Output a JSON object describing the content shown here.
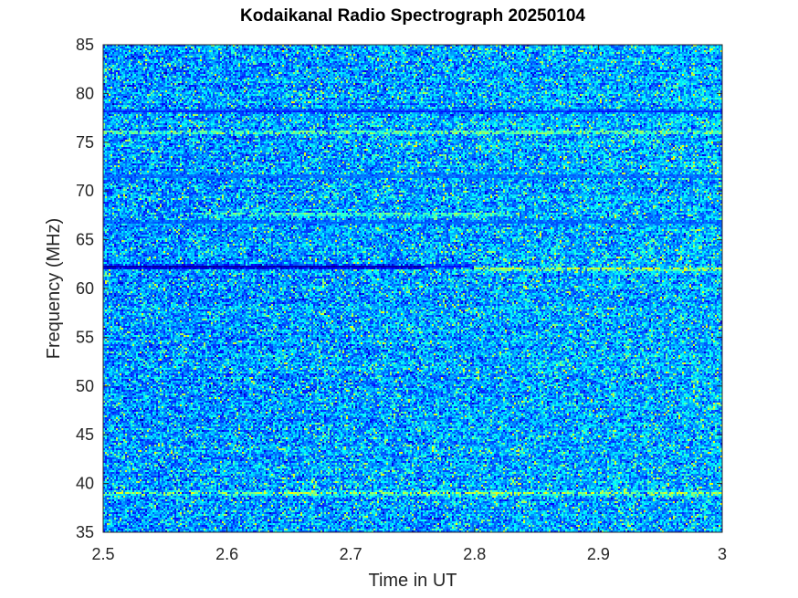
{
  "chart_data": {
    "type": "heatmap",
    "title": "Kodaikanal Radio Spectrograph  20250104",
    "xlabel": "Time in UT",
    "ylabel": "Frequency (MHz)",
    "xlim": [
      2.5,
      3.0
    ],
    "ylim": [
      35,
      85
    ],
    "x_ticks": [
      2.5,
      2.6,
      2.7,
      2.8,
      2.9,
      3.0
    ],
    "x_tick_labels": [
      "2.5",
      "2.6",
      "2.7",
      "2.8",
      "2.9",
      "3"
    ],
    "y_ticks": [
      35,
      40,
      45,
      50,
      55,
      60,
      65,
      70,
      75,
      80,
      85
    ],
    "y_tick_labels": [
      "35",
      "40",
      "45",
      "50",
      "55",
      "60",
      "65",
      "70",
      "75",
      "80",
      "85"
    ],
    "colormap": "jet",
    "colorbar": false,
    "grid": false,
    "features": [
      {
        "kind": "dark_band",
        "freq_mhz": 62.2,
        "t_start": 2.5,
        "t_end": 2.76,
        "level": 0.0
      },
      {
        "kind": "dark_band",
        "freq_mhz": 62.3,
        "t_start": 2.76,
        "t_end": 2.8,
        "level": 0.12
      },
      {
        "kind": "bright_band",
        "freq_mhz": 62.0,
        "t_start": 2.8,
        "t_end": 3.0,
        "level": 0.62
      },
      {
        "kind": "bright_band",
        "freq_mhz": 39.0,
        "t_start": 2.5,
        "t_end": 3.0,
        "level": 0.58
      },
      {
        "kind": "bright_band",
        "freq_mhz": 76.0,
        "t_start": 2.5,
        "t_end": 3.0,
        "level": 0.55
      },
      {
        "kind": "bright_band",
        "freq_mhz": 67.6,
        "t_start": 2.58,
        "t_end": 2.83,
        "level": 0.52
      },
      {
        "kind": "dark_band",
        "freq_mhz": 78.2,
        "t_start": 2.5,
        "t_end": 3.0,
        "level": 0.15
      },
      {
        "kind": "dark_band",
        "freq_mhz": 66.8,
        "t_start": 2.5,
        "t_end": 3.0,
        "level": 0.2
      },
      {
        "kind": "dark_band",
        "freq_mhz": 71.5,
        "t_start": 2.5,
        "t_end": 3.0,
        "level": 0.22
      }
    ]
  },
  "colors": {
    "background": "#ffffff",
    "axis": "#262626",
    "text": "#262626"
  }
}
